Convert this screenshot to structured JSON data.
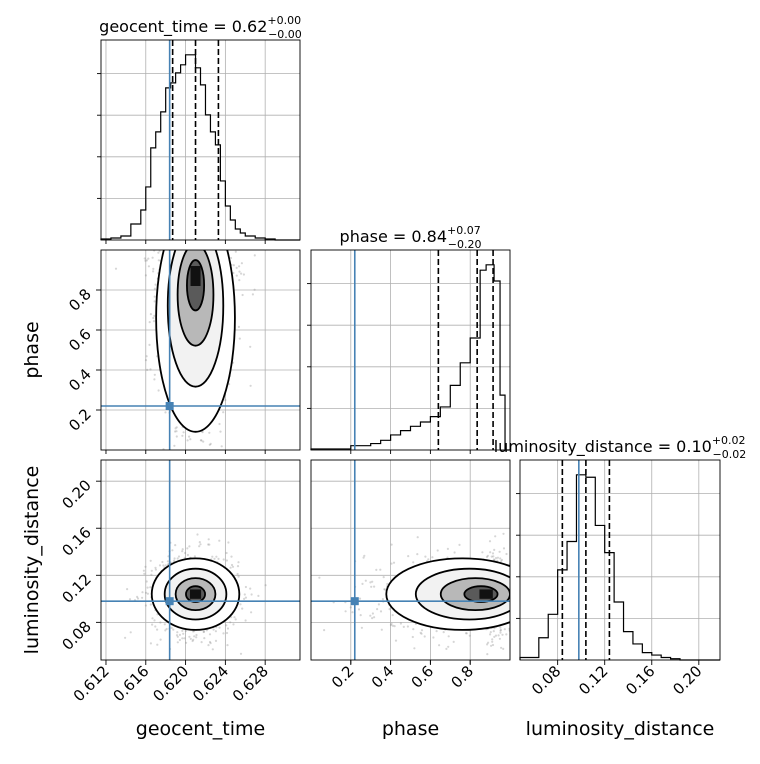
{
  "chart_data": {
    "type": "corner",
    "parameters": [
      "geocent_time",
      "phase",
      "luminosity_distance"
    ],
    "truths": {
      "geocent_time": 0.6184,
      "phase": 0.22,
      "luminosity_distance": 0.098
    },
    "axes": {
      "geocent_time": {
        "range": [
          0.6115,
          0.6315
        ],
        "ticks": [
          "0.612",
          "0.616",
          "0.620",
          "0.624",
          "0.628"
        ],
        "tick_values": [
          0.612,
          0.616,
          0.62,
          0.624,
          0.628
        ]
      },
      "phase": {
        "range": [
          0.0,
          1.0
        ],
        "ticks": [
          "0.2",
          "0.4",
          "0.6",
          "0.8"
        ],
        "tick_values": [
          0.2,
          0.4,
          0.6,
          0.8
        ]
      },
      "luminosity_distance": {
        "range": [
          0.048,
          0.218
        ],
        "ticks": [
          "0.08",
          "0.12",
          "0.16",
          "0.20"
        ],
        "tick_values": [
          0.08,
          0.12,
          0.16,
          0.2
        ]
      }
    },
    "marginals": [
      {
        "param": "geocent_time",
        "title": "geocent_time = 0.62",
        "sup": "+0.00",
        "sub": "−0.00",
        "quantiles": [
          0.6187,
          0.621,
          0.6233
        ],
        "bin_edges": [
          0.6115,
          0.6125,
          0.6135,
          0.6145,
          0.6155,
          0.616,
          0.6165,
          0.617,
          0.6175,
          0.618,
          0.6185,
          0.619,
          0.6195,
          0.62,
          0.6205,
          0.621,
          0.6215,
          0.622,
          0.6225,
          0.623,
          0.6235,
          0.624,
          0.6245,
          0.625,
          0.6255,
          0.626,
          0.627,
          0.628,
          0.629,
          0.6315
        ],
        "counts": [
          1,
          2,
          4,
          16,
          30,
          53,
          92,
          108,
          128,
          152,
          157,
          167,
          175,
          185,
          185,
          172,
          155,
          125,
          108,
          95,
          59,
          34,
          20,
          11,
          7,
          4,
          2,
          1,
          0
        ]
      },
      {
        "param": "phase",
        "title": "phase = 0.84",
        "sup": "+0.07",
        "sub": "−0.20",
        "quantiles": [
          0.64,
          0.835,
          0.915
        ],
        "bin_edges": [
          0.0,
          0.2,
          0.3,
          0.35,
          0.4,
          0.45,
          0.5,
          0.55,
          0.6,
          0.65,
          0.7,
          0.75,
          0.8,
          0.85,
          0.88,
          0.92,
          0.95,
          0.975,
          1.0
        ],
        "counts": [
          1,
          4,
          6,
          9,
          14,
          18,
          22,
          26,
          31,
          40,
          60,
          81,
          104,
          167,
          172,
          157,
          51,
          0
        ]
      },
      {
        "param": "luminosity_distance",
        "title": "luminosity_distance = 0.10",
        "sup": "+0.02",
        "sub": "−0.02",
        "quantiles": [
          0.084,
          0.104,
          0.124
        ],
        "bin_edges": [
          0.048,
          0.064,
          0.072,
          0.08,
          0.088,
          0.096,
          0.104,
          0.112,
          0.12,
          0.128,
          0.136,
          0.144,
          0.152,
          0.16,
          0.168,
          0.176,
          0.184,
          0.218
        ],
        "counts": [
          2,
          18,
          37,
          73,
          96,
          150,
          148,
          109,
          87,
          47,
          23,
          13,
          6,
          4,
          2,
          1,
          0
        ]
      }
    ],
    "joint": [
      {
        "x": "geocent_time",
        "y": "phase",
        "center": [
          0.621,
          0.87
        ],
        "spread": [
          0.0018,
          0.2
        ],
        "skew": "lower-tail"
      },
      {
        "x": "geocent_time",
        "y": "luminosity_distance",
        "center": [
          0.621,
          0.104
        ],
        "spread": [
          0.002,
          0.016
        ]
      },
      {
        "x": "phase",
        "y": "luminosity_distance",
        "center": [
          0.88,
          0.104
        ],
        "spread": [
          0.12,
          0.016
        ],
        "skew": "left-tail"
      }
    ]
  }
}
